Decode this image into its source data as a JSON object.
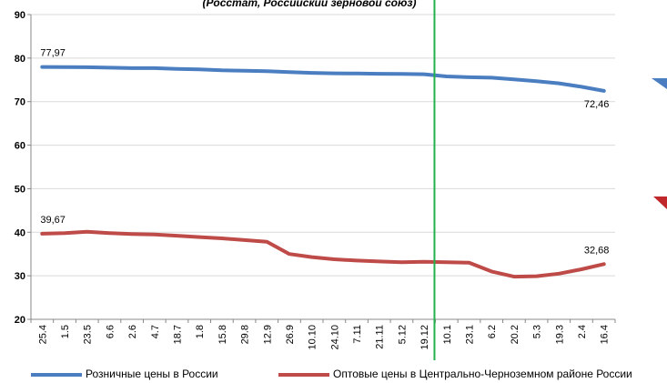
{
  "subtitle": "(Росстат, Российский зерновой союз)",
  "chart_data": {
    "type": "line",
    "ylim": [
      20,
      90
    ],
    "yticks": [
      20,
      30,
      40,
      50,
      60,
      70,
      80,
      90
    ],
    "grid": true,
    "legend_position": "bottom",
    "x": [
      "25.4",
      "1.5",
      "23.5",
      "6.6",
      "2.6",
      "4.7",
      "18.7",
      "1.8",
      "15.8",
      "29.8",
      "12.9",
      "26.9",
      "10.10",
      "24.10",
      "7.11",
      "21.11",
      "5.12",
      "19.12",
      "10.1",
      "23.1",
      "6.2",
      "20.2",
      "5.3",
      "19.3",
      "2.4",
      "16.4"
    ],
    "marker_line": {
      "category": "10.1",
      "color": "#22B14C"
    },
    "series": [
      {
        "name": "Розничные цены в России",
        "color": "#4A7EC0",
        "values": [
          77.97,
          77.95,
          77.9,
          77.8,
          77.7,
          77.7,
          77.5,
          77.4,
          77.2,
          77.1,
          77.0,
          76.8,
          76.6,
          76.5,
          76.45,
          76.4,
          76.35,
          76.3,
          75.8,
          75.6,
          75.5,
          75.1,
          74.7,
          74.2,
          73.4,
          72.46
        ],
        "labels": [
          {
            "index": 0,
            "text": "77,97"
          },
          {
            "index": 25,
            "text": "72,46"
          }
        ]
      },
      {
        "name": "Оптовые цены в Центрально-Черноземном районе России",
        "color": "#BE4B48",
        "values": [
          39.67,
          39.8,
          40.1,
          39.8,
          39.6,
          39.5,
          39.2,
          38.9,
          38.6,
          38.2,
          37.8,
          35.0,
          34.3,
          33.8,
          33.5,
          33.3,
          33.1,
          33.2,
          33.1,
          33.0,
          31.0,
          29.8,
          29.9,
          30.5,
          31.5,
          32.68
        ],
        "labels": [
          {
            "index": 0,
            "text": "39,67"
          },
          {
            "index": 25,
            "text": "32,68"
          }
        ]
      }
    ]
  }
}
